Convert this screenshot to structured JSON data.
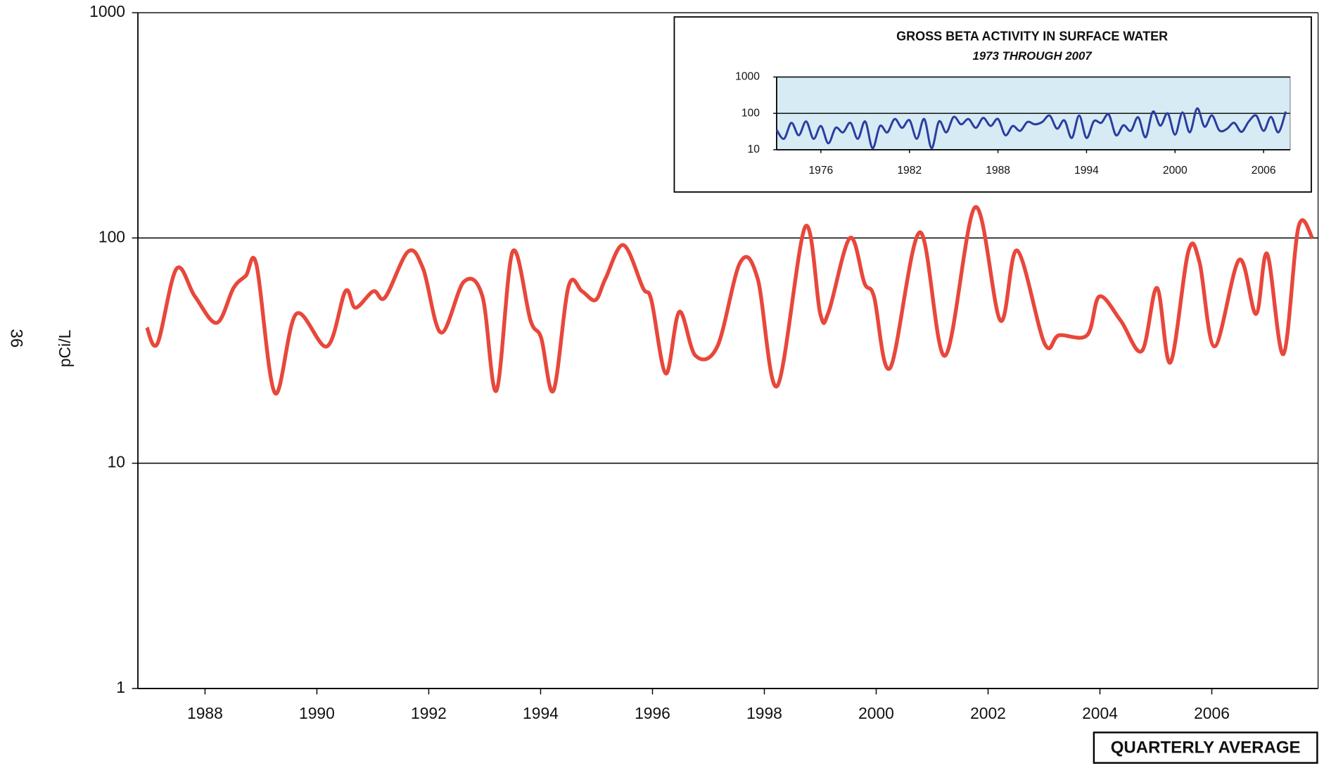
{
  "page_number": "36",
  "chart_data": [
    {
      "type": "line",
      "y_label": "pCi/L",
      "annotation": "QUARTERLY AVERAGE",
      "log_scale": true,
      "grid": true,
      "xlim": [
        1986.8,
        2007.9
      ],
      "ylim": [
        1,
        1000
      ],
      "xticks": [
        1988,
        1990,
        1992,
        1994,
        1996,
        1998,
        2000,
        2002,
        2004,
        2006
      ],
      "yticks": [
        1,
        10,
        100,
        1000
      ],
      "series": [
        {
          "color": "#e8473b",
          "x": [
            1986.96,
            1987.15,
            1987.49,
            1987.82,
            1988.21,
            1988.51,
            1988.73,
            1988.92,
            1989.25,
            1989.63,
            1990.18,
            1990.51,
            1990.69,
            1991.01,
            1991.22,
            1991.63,
            1991.9,
            1992.22,
            1992.63,
            1992.96,
            1993.21,
            1993.5,
            1993.82,
            1994.01,
            1994.23,
            1994.5,
            1994.74,
            1994.98,
            1995.16,
            1995.48,
            1995.83,
            1995.98,
            1996.24,
            1996.48,
            1996.77,
            1997.16,
            1997.57,
            1997.88,
            1998.23,
            1998.73,
            1999.0,
            1999.15,
            1999.53,
            1999.79,
            1999.96,
            2000.25,
            2000.78,
            2001.23,
            2001.77,
            2002.22,
            2002.52,
            2003.01,
            2003.27,
            2003.77,
            2003.99,
            2004.37,
            2004.75,
            2005.02,
            2005.26,
            2005.58,
            2005.78,
            2006.05,
            2006.49,
            2006.79,
            2006.99,
            2007.28,
            2007.55,
            2007.8
          ],
          "values": [
            40,
            34,
            73,
            55,
            42,
            60,
            68,
            76,
            20.5,
            46,
            33,
            58,
            49,
            58,
            54.5,
            87,
            73,
            38,
            64,
            55,
            21,
            87,
            43,
            36,
            21,
            61,
            58,
            53,
            66,
            93,
            60,
            53,
            25,
            47,
            30,
            33,
            78,
            66,
            22,
            112,
            46,
            47,
            100,
            63,
            55,
            26.5,
            106,
            30,
            137,
            43,
            88,
            34,
            37,
            37,
            55,
            43,
            31.5,
            60,
            28,
            87,
            78,
            33,
            80,
            46,
            85,
            30.5,
            112,
            100
          ]
        }
      ]
    },
    {
      "type": "line",
      "title": "GROSS BETA ACTIVITY IN SURFACE WATER",
      "subtitle": "1973 THROUGH 2007",
      "log_scale": true,
      "grid": true,
      "xlim": [
        1973,
        2007.8
      ],
      "ylim": [
        10,
        1000
      ],
      "xticks": [
        1976,
        1982,
        1988,
        1994,
        2000,
        2006
      ],
      "yticks": [
        10,
        100,
        1000
      ],
      "series": [
        {
          "color": "#2b3d9f",
          "x": [
            1973,
            1973.5,
            1974,
            1974.5,
            1975,
            1975.5,
            1976,
            1976.5,
            1977,
            1977.5,
            1978,
            1978.5,
            1979,
            1979.5,
            1980,
            1980.5,
            1981,
            1981.5,
            1982,
            1982.5,
            1983,
            1983.5,
            1984,
            1984.5,
            1985,
            1985.5,
            1986,
            1986.5,
            1987,
            1987.5,
            1988,
            1988.5,
            1989,
            1989.5,
            1990,
            1990.5,
            1991,
            1991.5,
            1992,
            1992.5,
            1993,
            1993.5,
            1994,
            1994.5,
            1995,
            1995.5,
            1996,
            1996.5,
            1997,
            1997.5,
            1998,
            1998.5,
            1999,
            1999.5,
            2000,
            2000.5,
            2001,
            2001.5,
            2002,
            2002.5,
            2003,
            2003.5,
            2004,
            2004.5,
            2005,
            2005.5,
            2006,
            2006.5,
            2007,
            2007.5
          ],
          "values": [
            35,
            20,
            55,
            25,
            60,
            20,
            45,
            15,
            40,
            30,
            55,
            20,
            60,
            11,
            45,
            30,
            70,
            40,
            65,
            20,
            70,
            11,
            60,
            30,
            80,
            50,
            70,
            40,
            75,
            45,
            70,
            25,
            45,
            33,
            58,
            50,
            58,
            87,
            38,
            64,
            21,
            87,
            21,
            61,
            55,
            93,
            25,
            47,
            33,
            78,
            22,
            112,
            46,
            100,
            26,
            106,
            30,
            137,
            43,
            88,
            34,
            37,
            55,
            31,
            60,
            87,
            33,
            80,
            30,
            112
          ]
        }
      ]
    }
  ]
}
